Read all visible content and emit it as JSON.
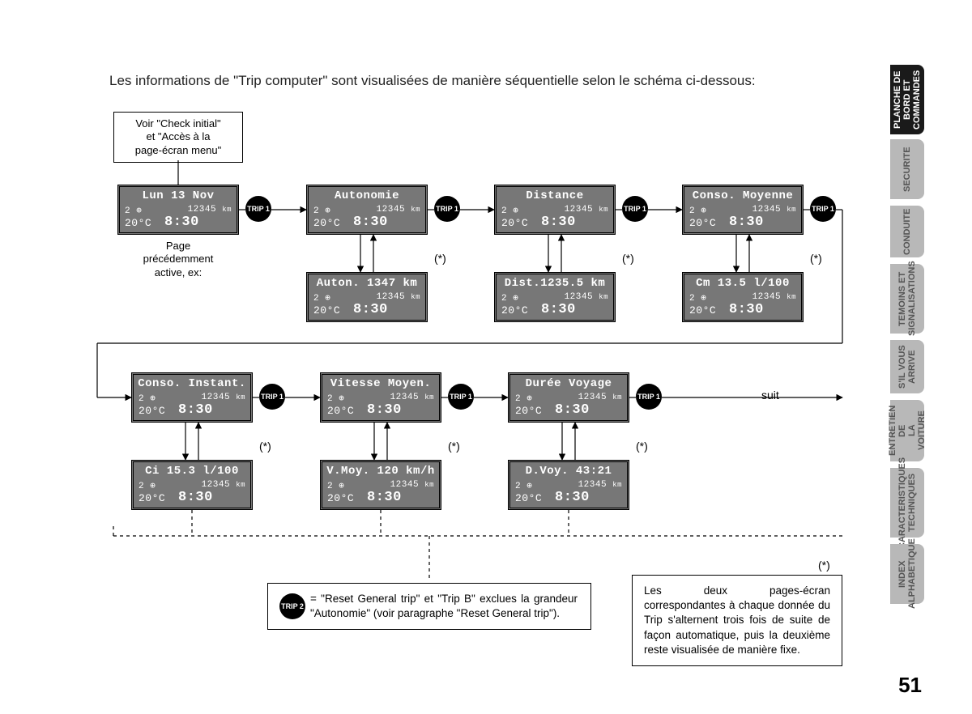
{
  "intro": "Les informations de \"Trip computer\" sont visualisées de manière séquentielle selon le schéma ci-dessous:",
  "noteTop": "Voir \"Check initial\"\net \"Accès à la\npage-écran menu\"",
  "captionA": "Page\nprécédemment\nactive, ex:",
  "suit": "suit",
  "tripLabel1": "TRIP 1",
  "tripLabel2": "TRIP 2",
  "asterisk": "(*)",
  "common": {
    "gear": "2",
    "odo": "12345",
    "odoUnit": "km",
    "temp": "20°C",
    "time": "8:30"
  },
  "screens": {
    "date": {
      "title": "Lun 13 Nov"
    },
    "auton": {
      "title": "Autonomie"
    },
    "autonV": {
      "title": "Auton. 1347 km"
    },
    "dist": {
      "title": "Distance"
    },
    "distV": {
      "title": "Dist.1235.5 km"
    },
    "cmoy": {
      "title": "Conso. Moyenne"
    },
    "cmoyV": {
      "title": "Cm  13.5 l/100"
    },
    "cinst": {
      "title": "Conso. Instant."
    },
    "cinstV": {
      "title": "Ci  15.3 l/100"
    },
    "vmoy": {
      "title": "Vitesse Moyen."
    },
    "vmoyV": {
      "title": "V.Moy. 120 km/h"
    },
    "duree": {
      "title": "Durée Voyage"
    },
    "dureeV": {
      "title": "D.Voy.  43:21"
    }
  },
  "footnote1": "= \"Reset General trip\" et \"Trip B\" exclues la grandeur \"Autonomie\" (voir paragraphe \"Reset General trip\").",
  "footnote2": "Les deux pages-écran correspondantes à chaque donnée du Trip s'alternent trois fois de suite de façon automatique, puis la deuxième reste visualisée de manière fixe.",
  "tabs": [
    {
      "label": "PLANCHE DE\nBORD ET\nCOMMANDES",
      "active": true
    },
    {
      "label": "SECURITE",
      "active": false
    },
    {
      "label": "CONDUITE",
      "active": false
    },
    {
      "label": "TEMOINS ET\nSIGNALISATIONS",
      "active": false
    },
    {
      "label": "S'IL VOUS\nARRIVE",
      "active": false
    },
    {
      "label": "ENTRETIEN DE\nLA VOITURE",
      "active": false
    },
    {
      "label": "CARACTERISTIQUES\nTECHNIQUES",
      "active": false
    },
    {
      "label": "INDEX\nALPHABETIQUE",
      "active": false
    }
  ],
  "pageNum": "51",
  "layout": {
    "row1y": 228,
    "row1by": 336,
    "row2y": 460,
    "row2by": 568,
    "col": [
      145,
      378,
      610,
      842
    ],
    "colB": [
      378,
      610,
      842
    ],
    "col2": [
      162,
      395,
      627
    ],
    "col2B": [
      162,
      395,
      627
    ],
    "badge1": [
      303,
      536,
      768,
      1000
    ],
    "badge2": [
      320,
      553,
      785
    ],
    "tabTops": [
      80,
      172,
      254,
      326,
      420,
      494,
      578,
      672
    ],
    "tabHeights": [
      86,
      74,
      64,
      86,
      66,
      76,
      86,
      74
    ]
  }
}
